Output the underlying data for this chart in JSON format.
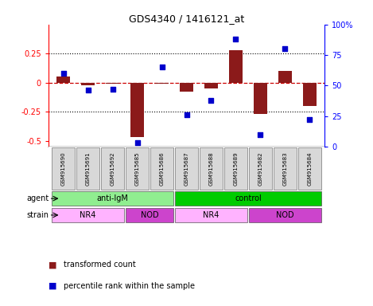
{
  "title": "GDS4340 / 1416121_at",
  "samples": [
    "GSM915690",
    "GSM915691",
    "GSM915692",
    "GSM915685",
    "GSM915686",
    "GSM915687",
    "GSM915688",
    "GSM915689",
    "GSM915682",
    "GSM915683",
    "GSM915684"
  ],
  "bar_values": [
    0.05,
    -0.02,
    -0.01,
    -0.47,
    -0.01,
    -0.08,
    -0.05,
    0.28,
    -0.27,
    0.1,
    -0.2
  ],
  "dot_values": [
    60,
    46,
    47,
    3,
    65,
    26,
    38,
    88,
    10,
    80,
    22
  ],
  "bar_color": "#8B1A1A",
  "dot_color": "#0000CC",
  "dashed_line_color": "#CC0000",
  "ylim_left": [
    -0.55,
    0.5
  ],
  "ylim_right": [
    0,
    100
  ],
  "yticks_left": [
    -0.5,
    -0.25,
    0.0,
    0.25
  ],
  "yticks_right": [
    0,
    25,
    50,
    75,
    100
  ],
  "agent_groups": [
    {
      "label": "anti-IgM",
      "start": 0,
      "end": 4,
      "color": "#90EE90"
    },
    {
      "label": "control",
      "start": 5,
      "end": 10,
      "color": "#00CC00"
    }
  ],
  "strain_groups": [
    {
      "label": "NR4",
      "start": 0,
      "end": 2,
      "color": "#FFB3FF"
    },
    {
      "label": "NOD",
      "start": 3,
      "end": 4,
      "color": "#CC44CC"
    },
    {
      "label": "NR4",
      "start": 5,
      "end": 7,
      "color": "#FFB3FF"
    },
    {
      "label": "NOD",
      "start": 8,
      "end": 10,
      "color": "#CC44CC"
    }
  ],
  "legend_bar_label": "transformed count",
  "legend_dot_label": "percentile rank within the sample",
  "label_agent": "agent",
  "label_strain": "strain",
  "background_color": "#D8D8D8"
}
